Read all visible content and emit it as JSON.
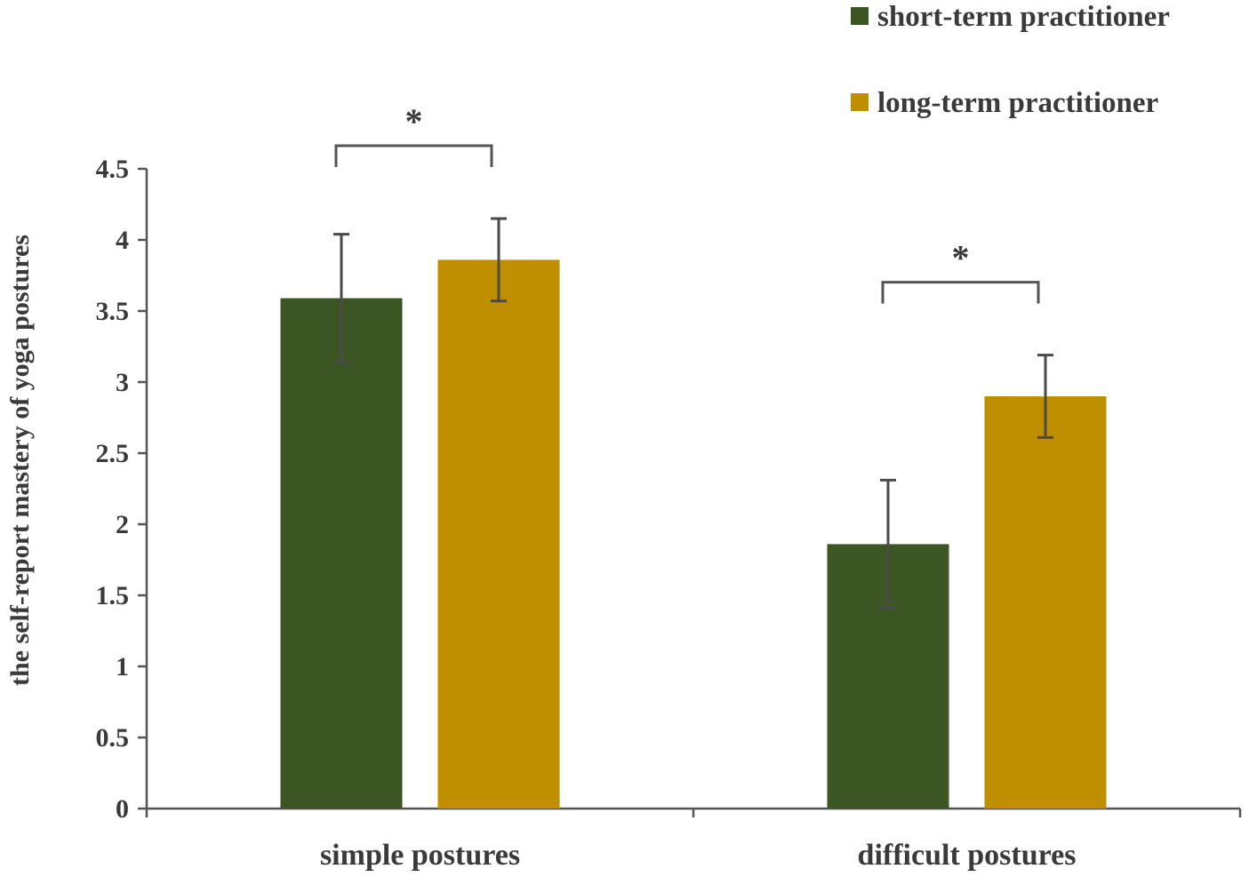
{
  "chart_data": {
    "type": "bar",
    "ylabel": "the self-report mastery of yoga postures",
    "xlabel": "",
    "title": "",
    "categories": [
      "simple postures",
      "difficult postures"
    ],
    "series": [
      {
        "name": "short-term practitioner",
        "values": [
          3.59,
          1.86
        ],
        "errors": [
          0.45,
          0.45
        ],
        "color": "#3b5523"
      },
      {
        "name": "long-term practitioner",
        "values": [
          3.86,
          2.9
        ],
        "errors": [
          0.29,
          0.29
        ],
        "color": "#c08f00"
      }
    ],
    "ylim": [
      0,
      4.5
    ],
    "yticks": [
      "0",
      "0.5",
      "1",
      "1.5",
      "2",
      "2.5",
      "3",
      "3.5",
      "4",
      "4.5"
    ],
    "legend_position": "top-right",
    "grid": false,
    "annotations": [
      {
        "category": "simple postures",
        "text": "*"
      },
      {
        "category": "difficult postures",
        "text": "*"
      }
    ]
  }
}
